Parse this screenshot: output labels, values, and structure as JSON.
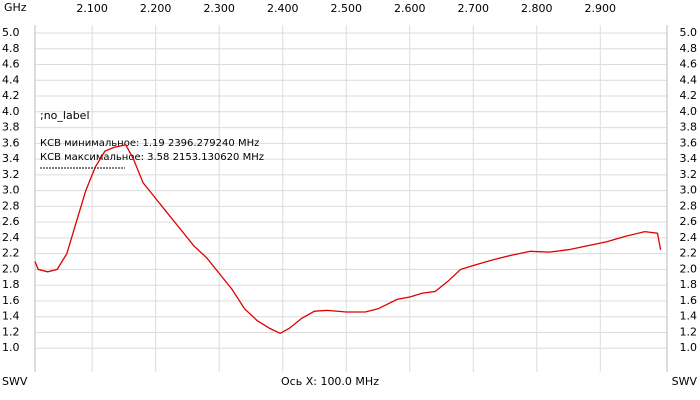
{
  "chart_data": {
    "type": "line",
    "x_unit_label": "GHz",
    "y_label_left": "SWV",
    "y_label_right": "SWV",
    "x_axis_note": "Ось X: 100.0 MHz",
    "annotations": [
      ";no_label",
      "КСВ минимальное: 1.19  2396.279240 MHz",
      "КСВ максимальное: 3.58  2153.130620 MHz"
    ],
    "grid": true,
    "xlim": [
      2.01,
      3.005
    ],
    "ylim": [
      0.8,
      5.0
    ],
    "xticks": [
      {
        "value": 2.1,
        "label": "2.100"
      },
      {
        "value": 2.2,
        "label": "2.200"
      },
      {
        "value": 2.3,
        "label": "2.300"
      },
      {
        "value": 2.4,
        "label": "2.400"
      },
      {
        "value": 2.5,
        "label": "2.500"
      },
      {
        "value": 2.6,
        "label": "2.600"
      },
      {
        "value": 2.7,
        "label": "2.700"
      },
      {
        "value": 2.8,
        "label": "2.800"
      },
      {
        "value": 2.9,
        "label": "2.900"
      }
    ],
    "yticks": [
      {
        "value": 1,
        "label": "1.0"
      },
      1.2,
      1.4,
      1.6,
      1.8,
      {
        "value": 2,
        "label": "2.0"
      },
      2.2,
      2.4,
      2.6,
      2.8,
      {
        "value": 3,
        "label": "3.0"
      },
      3.2,
      3.4,
      3.6,
      3.8,
      {
        "value": 4,
        "label": "4.0"
      },
      4.2,
      4.4,
      4.6,
      4.8,
      {
        "value": 5,
        "label": "5.0"
      }
    ],
    "x": [
      2.01,
      2.015,
      2.03,
      2.045,
      2.06,
      2.075,
      2.09,
      2.105,
      2.12,
      2.135,
      2.153,
      2.165,
      2.18,
      2.2,
      2.22,
      2.24,
      2.26,
      2.28,
      2.3,
      2.32,
      2.34,
      2.36,
      2.38,
      2.396,
      2.41,
      2.43,
      2.45,
      2.47,
      2.5,
      2.53,
      2.55,
      2.58,
      2.6,
      2.62,
      2.64,
      2.66,
      2.68,
      2.7,
      2.73,
      2.76,
      2.79,
      2.82,
      2.85,
      2.88,
      2.91,
      2.94,
      2.97,
      2.99,
      2.995
    ],
    "series": [
      {
        "color": "#e00000",
        "values": [
          2.1,
          2.0,
          1.97,
          2.0,
          2.2,
          2.6,
          3.0,
          3.3,
          3.5,
          3.55,
          3.58,
          3.4,
          3.1,
          2.9,
          2.7,
          2.5,
          2.3,
          2.15,
          1.95,
          1.75,
          1.5,
          1.35,
          1.25,
          1.19,
          1.25,
          1.38,
          1.47,
          1.48,
          1.46,
          1.46,
          1.5,
          1.62,
          1.65,
          1.7,
          1.72,
          1.85,
          2.0,
          2.05,
          2.12,
          2.18,
          2.23,
          2.22,
          2.25,
          2.3,
          2.35,
          2.42,
          2.48,
          2.46,
          2.25
        ]
      }
    ]
  }
}
